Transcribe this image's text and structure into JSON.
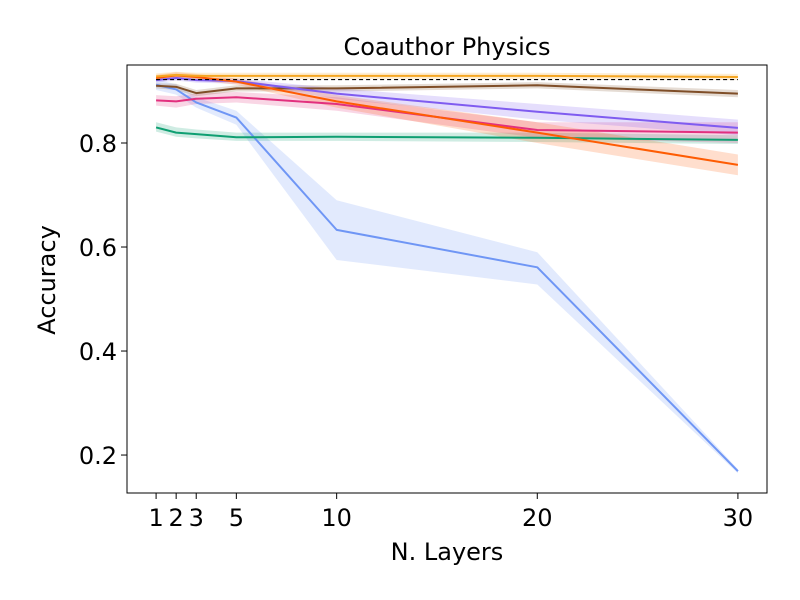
{
  "chart_data": {
    "type": "line",
    "title": "Coauthor Physics",
    "xlabel": "N. Layers",
    "ylabel": "Accuracy",
    "xlim": [
      -0.45,
      31.45
    ],
    "ylim": [
      0.127,
      0.95
    ],
    "xticks": [
      1,
      2,
      3,
      5,
      10,
      20,
      30
    ],
    "yticks": [
      0.2,
      0.4,
      0.6,
      0.8
    ],
    "ytick_labels": [
      "0.2",
      "0.4",
      "0.6",
      "0.8"
    ],
    "grid": false,
    "legend": "none",
    "x": [
      1,
      2,
      3,
      5,
      10,
      20,
      30
    ],
    "series": [
      {
        "color": "#6f96f5",
        "values": [
          0.912,
          0.903,
          0.878,
          0.849,
          0.633,
          0.561,
          0.169
        ],
        "lower": [
          0.902,
          0.893,
          0.868,
          0.835,
          0.575,
          0.528,
          0.165
        ],
        "upper": [
          0.922,
          0.913,
          0.888,
          0.862,
          0.69,
          0.59,
          0.173
        ]
      },
      {
        "color": "#0f9f72",
        "values": [
          0.83,
          0.82,
          0.817,
          0.811,
          0.812,
          0.81,
          0.806
        ],
        "lower": [
          0.822,
          0.812,
          0.809,
          0.804,
          0.804,
          0.802,
          0.798
        ],
        "upper": [
          0.84,
          0.83,
          0.826,
          0.82,
          0.82,
          0.82,
          0.815
        ]
      },
      {
        "color": "#e2307e",
        "values": [
          0.882,
          0.88,
          0.885,
          0.888,
          0.875,
          0.825,
          0.82
        ],
        "lower": [
          0.872,
          0.868,
          0.875,
          0.878,
          0.862,
          0.81,
          0.8
        ],
        "upper": [
          0.892,
          0.89,
          0.895,
          0.898,
          0.888,
          0.84,
          0.84
        ]
      },
      {
        "color": "#7f4e28",
        "values": [
          0.91,
          0.908,
          0.896,
          0.905,
          0.905,
          0.911,
          0.895
        ],
        "lower": [
          0.905,
          0.902,
          0.89,
          0.899,
          0.899,
          0.905,
          0.888
        ],
        "upper": [
          0.915,
          0.914,
          0.902,
          0.911,
          0.911,
          0.917,
          0.902
        ]
      },
      {
        "color": "#7f5cf0",
        "values": [
          0.921,
          0.925,
          0.921,
          0.919,
          0.895,
          0.86,
          0.829
        ],
        "lower": [
          0.916,
          0.92,
          0.916,
          0.914,
          0.885,
          0.845,
          0.815
        ],
        "upper": [
          0.926,
          0.93,
          0.926,
          0.924,
          0.905,
          0.875,
          0.845
        ]
      },
      {
        "color": "#fe5c03",
        "values": [
          0.925,
          0.93,
          0.927,
          0.918,
          0.88,
          0.82,
          0.758
        ],
        "lower": [
          0.919,
          0.924,
          0.921,
          0.912,
          0.868,
          0.8,
          0.738
        ],
        "upper": [
          0.931,
          0.936,
          0.933,
          0.924,
          0.892,
          0.84,
          0.778
        ]
      },
      {
        "color": "#f5a623",
        "values": [
          0.928,
          0.931,
          0.929,
          0.929,
          0.929,
          0.929,
          0.927
        ],
        "lower": [
          0.922,
          0.925,
          0.923,
          0.923,
          0.923,
          0.923,
          0.921
        ],
        "upper": [
          0.934,
          0.937,
          0.935,
          0.935,
          0.935,
          0.935,
          0.933
        ]
      },
      {
        "color": "#000000",
        "values": [
          0.922,
          0.922,
          0.922,
          0.922,
          0.922,
          0.922,
          0.922
        ],
        "dashed": true
      }
    ]
  }
}
